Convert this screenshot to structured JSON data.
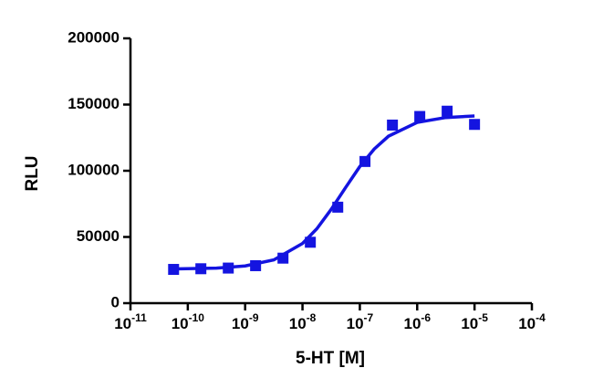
{
  "chart_data": {
    "type": "scatter",
    "xlabel": "5-HT [M]",
    "ylabel": "RLU",
    "xscale": "log",
    "xlim": [
      1e-11,
      0.0001
    ],
    "xticks": [
      {
        "value": 1e-11,
        "label": "10-11"
      },
      {
        "value": 1e-10,
        "label": "10-10"
      },
      {
        "value": 1e-09,
        "label": "10-9"
      },
      {
        "value": 1e-08,
        "label": "10-8"
      },
      {
        "value": 1e-07,
        "label": "10-7"
      },
      {
        "value": 1e-06,
        "label": "10-6"
      },
      {
        "value": 1e-05,
        "label": "10-5"
      },
      {
        "value": 0.0001,
        "label": "10-4"
      }
    ],
    "ylim": [
      0,
      200000
    ],
    "yticks": [
      0,
      50000,
      100000,
      150000,
      200000
    ],
    "series": [
      {
        "type": "scatter",
        "color": "#1414e0",
        "x": [
          5.65e-11,
          1.69e-10,
          5.08e-10,
          1.52e-09,
          4.57e-09,
          1.37e-08,
          4.12e-08,
          1.23e-07,
          3.7e-07,
          1.11e-06,
          3.33e-06,
          1e-05
        ],
        "values": [
          25500,
          26000,
          26500,
          28300,
          34000,
          46000,
          72500,
          107000,
          134500,
          141000,
          145000,
          135000
        ]
      },
      {
        "type": "line",
        "color": "#1414e0",
        "x": [
          5.62e-11,
          3.16e-10,
          1e-09,
          3.16e-09,
          1e-08,
          1.78e-08,
          3.16e-08,
          5.62e-08,
          1e-07,
          1.78e-07,
          3.16e-07,
          1e-06,
          3.16e-06,
          1e-05
        ],
        "values": [
          25900,
          26500,
          28100,
          32700,
          45100,
          56200,
          70800,
          87200,
          103200,
          116400,
          126100,
          136500,
          140200,
          141400
        ]
      }
    ]
  }
}
